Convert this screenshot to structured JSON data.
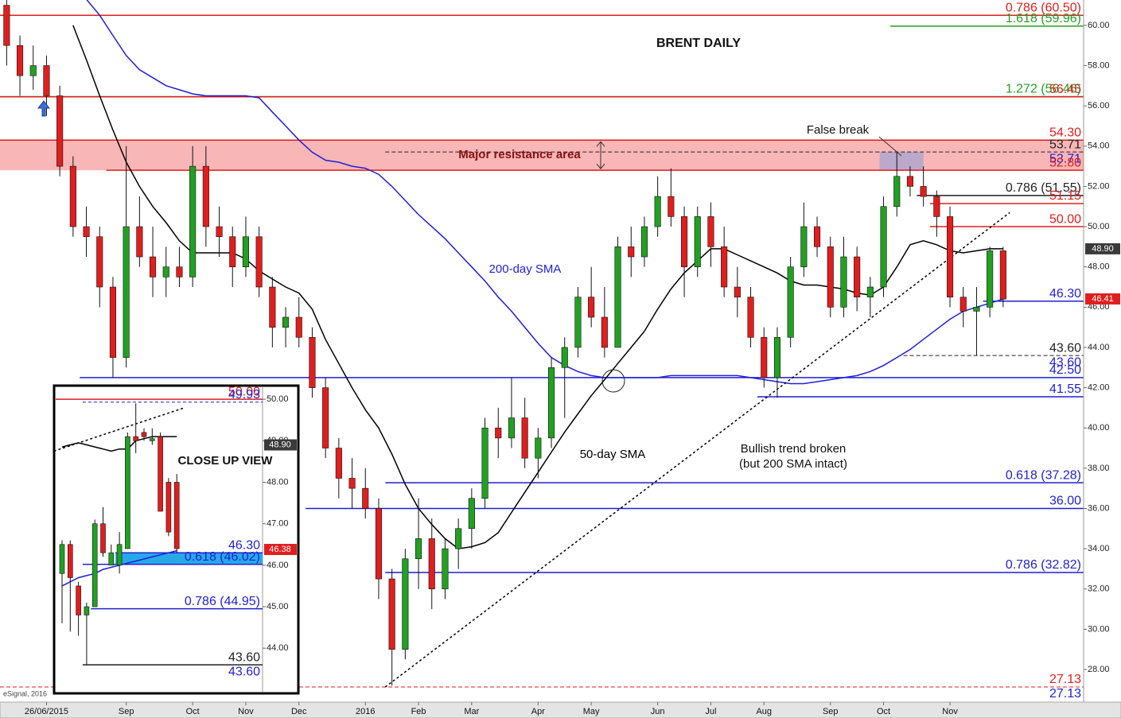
{
  "chart_data": {
    "type": "candlestick",
    "title": "BRENT DAILY",
    "categories": [
      null,
      null,
      null,
      "26/06/2015",
      null,
      null,
      null,
      null,
      null,
      "Sep",
      null,
      null,
      null,
      null,
      "Oct",
      null,
      null,
      null,
      "Nov",
      null,
      null,
      null,
      "Dec",
      null,
      null,
      null,
      null,
      "2016",
      null,
      null,
      null,
      "Feb",
      null,
      null,
      null,
      "Mar",
      null,
      null,
      null,
      null,
      "Apr",
      null,
      null,
      null,
      "May",
      null,
      null,
      null,
      null,
      "Jun",
      null,
      null,
      null,
      "Jul",
      null,
      null,
      null,
      "Aug",
      null,
      null,
      null,
      null,
      "Sep",
      null,
      null,
      null,
      "Oct",
      null,
      null,
      null,
      null,
      "Nov",
      null,
      null,
      null,
      null
    ],
    "open": [
      61,
      59,
      57.5,
      58,
      56.5,
      53,
      50,
      49.5,
      47,
      43.5,
      50,
      48.5,
      47.5,
      48,
      47.5,
      53,
      50,
      49.5,
      48,
      49.5,
      47,
      45,
      45.5,
      44.5,
      42,
      39,
      37.5,
      37,
      36,
      32.5,
      29,
      33.5,
      34.5,
      32,
      34,
      35,
      36.5,
      40,
      39.5,
      40.5,
      38.5,
      39.5,
      43,
      44,
      46.5,
      45.5,
      44,
      49,
      48.5,
      50,
      51.5,
      50.5,
      48,
      50.5,
      49,
      47,
      46.5,
      44.5,
      42.5,
      44.5,
      48,
      50,
      49,
      46,
      48.5,
      46.5,
      47,
      51,
      52.5,
      52,
      51.5,
      50.5,
      46.5,
      45.8,
      46,
      48.8
    ],
    "high": [
      61.5,
      59.5,
      59,
      58.5,
      57,
      53.5,
      51,
      50,
      47.5,
      54,
      51.5,
      50,
      49,
      49,
      54,
      54,
      51,
      50,
      50.5,
      50,
      47.5,
      46,
      46.5,
      45,
      42.5,
      39.5,
      38.5,
      38,
      36.5,
      33,
      34,
      36.5,
      35.5,
      34.5,
      35.5,
      37,
      40.5,
      41,
      42.5,
      41.5,
      40,
      43.5,
      44.5,
      47,
      48,
      47,
      49.5,
      50,
      50.5,
      52.5,
      52.9,
      51,
      51,
      51.2,
      50,
      48,
      47,
      45,
      45,
      48.5,
      51.2,
      50.5,
      49.5,
      49.5,
      49,
      47.5,
      51.5,
      53.7,
      53,
      53,
      51.8,
      51,
      47,
      47,
      49,
      49
    ],
    "low": [
      58,
      56.5,
      56.8,
      55.5,
      52.5,
      49.5,
      48.5,
      46,
      42.5,
      43,
      48,
      46.5,
      46.5,
      47,
      47,
      49,
      48.5,
      47,
      47.5,
      46.5,
      44,
      44,
      44,
      41.5,
      38.5,
      36.5,
      36,
      35.5,
      31.5,
      27.2,
      28.5,
      32,
      31,
      31.5,
      33,
      34,
      36,
      38.5,
      39,
      38,
      37.5,
      39,
      40.5,
      43.5,
      45,
      43.5,
      44,
      47.5,
      48,
      49.5,
      50,
      46.5,
      47.5,
      48,
      46.5,
      45.5,
      44,
      42,
      41.5,
      44,
      47.5,
      48.5,
      45.5,
      45.5,
      45.8,
      45.5,
      46.5,
      50.5,
      51.5,
      51,
      49.5,
      46,
      45,
      43.6,
      45.5,
      46
    ],
    "close": [
      59,
      57.5,
      58,
      56.5,
      53,
      50,
      49.5,
      47,
      43.5,
      50,
      48.5,
      47.5,
      48,
      47.5,
      53,
      50,
      49.5,
      48,
      49.5,
      47,
      45,
      45.5,
      44.5,
      42,
      39,
      37.5,
      37,
      36,
      32.5,
      29,
      33.5,
      34.5,
      32,
      34,
      35,
      36.5,
      40,
      39.5,
      40.5,
      38.5,
      39.5,
      43,
      44,
      46.5,
      45.5,
      44,
      49,
      48.5,
      50,
      51.5,
      50.5,
      48,
      50.5,
      49,
      47,
      46.5,
      44.5,
      42.5,
      44.5,
      48,
      50,
      49,
      46,
      48.5,
      46.5,
      47,
      51,
      52.5,
      52,
      51.5,
      50.5,
      46.5,
      45.8,
      46,
      48.8,
      46.4
    ],
    "up_color": "#22a022",
    "down_color": "#e01e1e",
    "series": [
      {
        "name": "200-day SMA",
        "color": "#1f1fd6",
        "values": [
          null,
          null,
          null,
          null,
          null,
          null,
          61.3,
          60.5,
          59.5,
          58.5,
          57.8,
          57.4,
          57.0,
          56.8,
          56.6,
          56.5,
          56.5,
          56.5,
          56.5,
          56.4,
          55.7,
          55.0,
          54.3,
          53.7,
          53.3,
          53.2,
          53.0,
          52.9,
          52.6,
          52.0,
          51.3,
          50.6,
          50.0,
          49.4,
          48.7,
          48.0,
          47.3,
          46.5,
          45.8,
          45.0,
          44.2,
          43.5,
          43.1,
          42.8,
          42.6,
          42.5,
          42.5,
          42.5,
          42.5,
          42.5,
          42.6,
          42.6,
          42.6,
          42.6,
          42.6,
          42.6,
          42.5,
          42.4,
          42.3,
          42.2,
          42.2,
          42.3,
          42.4,
          42.5,
          42.6,
          42.8,
          43.1,
          43.5,
          43.9,
          44.4,
          44.9,
          45.4,
          45.8,
          46.0,
          46.2,
          46.4
        ]
      },
      {
        "name": "50-day SMA",
        "color": "#000000",
        "values": [
          null,
          null,
          null,
          null,
          null,
          60,
          58.3,
          56.5,
          54.8,
          53.2,
          52.0,
          51.0,
          50.2,
          49.3,
          48.7,
          48.7,
          48.7,
          48.7,
          48.4,
          47.8,
          47.4,
          47.0,
          46.7,
          45.9,
          44.4,
          43.2,
          42.0,
          40.9,
          40.0,
          38.7,
          37.2,
          36.0,
          35.2,
          34.5,
          34.0,
          34.1,
          34.3,
          34.8,
          35.8,
          36.8,
          37.8,
          38.8,
          39.8,
          40.7,
          41.6,
          42.4,
          43.2,
          44.0,
          44.8,
          45.9,
          46.9,
          47.7,
          48.3,
          48.9,
          48.9,
          48.6,
          48.3,
          48.0,
          47.7,
          47.3,
          47.1,
          47.1,
          47.0,
          46.9,
          46.7,
          46.6,
          47.0,
          48.0,
          49.1,
          49.3,
          49.1,
          48.8,
          48.7,
          48.8,
          48.9,
          48.9
        ]
      }
    ],
    "ylim": [
      26.42,
      61.26
    ],
    "yticks": [
      {
        "value": 28,
        "label": "28.00"
      },
      {
        "value": 30,
        "label": "30.00"
      },
      {
        "value": 32,
        "label": "32.00"
      },
      {
        "value": 34,
        "label": "34.00"
      },
      {
        "value": 36,
        "label": "36.00"
      },
      {
        "value": 38,
        "label": "38.00"
      },
      {
        "value": 40,
        "label": "40.00"
      },
      {
        "value": 42,
        "label": "42.00"
      },
      {
        "value": 44,
        "label": "44.00"
      },
      {
        "value": 46,
        "label": "46.00"
      },
      {
        "value": 48,
        "label": "48.00"
      },
      {
        "value": 50,
        "label": "50.00"
      },
      {
        "value": 52,
        "label": "52.00"
      },
      {
        "value": 54,
        "label": "54.00"
      },
      {
        "value": 56,
        "label": "56.00"
      },
      {
        "value": 58,
        "label": "58.00"
      },
      {
        "value": 60,
        "label": "60.00"
      }
    ],
    "resistance_band": {
      "low": 52.8,
      "high": 54.3,
      "label": "Major resistance area",
      "color": "#f9b6b6"
    },
    "levels": [
      {
        "value": 60.5,
        "label": "0.786 (60.50)",
        "color": "#e01e1e",
        "start": 0
      },
      {
        "value": 59.96,
        "label": "1.618 (59.96)",
        "color": "#22a022",
        "start": 67
      },
      {
        "value": 56.46,
        "label": "1.272 (56.46)",
        "color": "#22a022",
        "start": 0
      },
      {
        "value": 56.45,
        "label": "56.45",
        "color": "#e01e1e",
        "start": 0
      },
      {
        "value": 54.3,
        "label": "54.30",
        "color": "#e01e1e",
        "start": 0
      },
      {
        "value": 53.71,
        "label": "53.71",
        "color": "#222222",
        "start": 29,
        "dashed": true
      },
      {
        "value": 53.71,
        "label": "53.71",
        "color": "#1f1fd6",
        "start": 29,
        "dashed": true
      },
      {
        "value": 52.8,
        "label": "52.80",
        "color": "#e01e1e",
        "start": 8
      },
      {
        "value": 51.55,
        "label": "0.786 (51.55)",
        "color": "#222222",
        "start": 69
      },
      {
        "value": 51.15,
        "label": "51.15",
        "color": "#e01e1e",
        "start": 70
      },
      {
        "value": 50,
        "label": "50.00",
        "color": "#e01e1e",
        "start": 70
      },
      {
        "value": 46.3,
        "label": "46.30",
        "color": "#1f1fd6",
        "start": 74
      },
      {
        "value": 43.6,
        "label": "43.60",
        "color": "#222222",
        "start": 68,
        "dashed": true
      },
      {
        "value": 43.6,
        "label": "43.60",
        "color": "#1f1fd6",
        "start": 73
      },
      {
        "value": 42.5,
        "label": "42.50",
        "color": "#1f1fd6",
        "start": 6
      },
      {
        "value": 41.55,
        "label": "41.55",
        "color": "#1f1fd6",
        "start": 57
      },
      {
        "value": 37.28,
        "label": "0.618 (37.28)",
        "color": "#1f1fd6",
        "start": 29
      },
      {
        "value": 36,
        "label": "36.00",
        "color": "#1f1fd6",
        "start": 23
      },
      {
        "value": 32.82,
        "label": "0.786 (32.82)",
        "color": "#1f1fd6",
        "start": 29
      },
      {
        "value": 27.13,
        "label": "27.13",
        "color": "#e01e1e",
        "start": 0,
        "dashed": true
      },
      {
        "value": 27.13,
        "label": "27.13",
        "color": "#1f1fd6",
        "start": 0,
        "dashed": true
      }
    ],
    "price_tags": [
      {
        "value": 48.9,
        "label": "48.90",
        "color": "#3a3a3a"
      },
      {
        "value": 46.41,
        "label": "46.41",
        "color": "#e01e1e"
      }
    ],
    "trendline": {
      "start": [
        29,
        27.13
      ],
      "end": [
        76,
        50.7
      ]
    },
    "annotations": [
      "False break",
      "Bullish trend broken",
      "(but 200 SMA intact)",
      "eSignal, 2016"
    ],
    "inset": {
      "title": "CLOSE UP VIEW",
      "open": [
        45.8,
        46.5,
        45.5,
        44.8,
        45,
        47,
        46,
        46,
        46.4,
        49.1,
        49.2,
        49,
        49.1,
        48,
        48
      ],
      "high": [
        46.6,
        46.6,
        45.6,
        45.1,
        47.1,
        47.4,
        46.5,
        46.8,
        49.2,
        49.9,
        49.3,
        49.3,
        49.2,
        48.1,
        48.2
      ],
      "low": [
        44.6,
        44.4,
        44.3,
        43.6,
        45,
        46.2,
        46,
        45.8,
        46.4,
        48.7,
        49,
        48.9,
        47.3,
        46.7,
        46.3
      ],
      "close": [
        46.5,
        45.7,
        44.8,
        45,
        47,
        46.3,
        46.3,
        46.5,
        49.1,
        49,
        49.1,
        49.05,
        47.3,
        46.8,
        46.4
      ],
      "series": [
        {
          "color": "#000000",
          "values": [
            48.85,
            48.9,
            48.95,
            48.9,
            48.85,
            48.8,
            48.75,
            48.8,
            48.8,
            49.0,
            49.05,
            49.1,
            49.1,
            49.1,
            49.1
          ]
        },
        {
          "color": "#1f1fd6",
          "values": [
            45.5,
            45.6,
            45.7,
            45.75,
            45.8,
            45.9,
            45.95,
            46.0,
            46.05,
            46.1,
            46.15,
            46.2,
            46.25,
            46.3,
            46.35
          ]
        }
      ],
      "ylim": [
        42.95,
        50.29
      ],
      "yticks": [
        {
          "value": 44,
          "label": "44.00"
        },
        {
          "value": 45,
          "label": "45.00"
        },
        {
          "value": 46,
          "label": "46.00"
        },
        {
          "value": 47,
          "label": "47.00"
        },
        {
          "value": 48,
          "label": "48.00"
        },
        {
          "value": 49,
          "label": "49.00"
        },
        {
          "value": 50,
          "label": "50.00"
        }
      ],
      "band": {
        "low": 46.02,
        "high": 46.3,
        "start": 7,
        "color": "#27a9e8"
      },
      "levels": [
        {
          "value": 50,
          "label": "50.00",
          "color": "#e01e1e",
          "start": -1
        },
        {
          "value": 49.93,
          "label": "49.93",
          "color": "#1f1fd6",
          "start": 3,
          "dashed": true
        },
        {
          "value": 46.3,
          "label": "46.30",
          "color": "#1f1fd6",
          "start": 7
        },
        {
          "value": 46.02,
          "label": "0.618 (46.02)",
          "color": "#1f1fd6",
          "start": 3
        },
        {
          "value": 44.95,
          "label": "0.786 (44.95)",
          "color": "#1f1fd6",
          "start": 4
        },
        {
          "value": 43.6,
          "label": "43.60",
          "color": "#222222",
          "start": 3
        },
        {
          "value": 43.6,
          "label": "43.60",
          "color": "#1f1fd6",
          "start": 3
        }
      ],
      "price_tags": [
        {
          "value": 48.9,
          "label": "48.90",
          "color": "#3a3a3a"
        },
        {
          "value": 46.38,
          "label": "46.38",
          "color": "#e01e1e"
        }
      ],
      "trendline": {
        "start": [
          -1,
          48.75
        ],
        "end": [
          15,
          49.8
        ]
      }
    }
  }
}
